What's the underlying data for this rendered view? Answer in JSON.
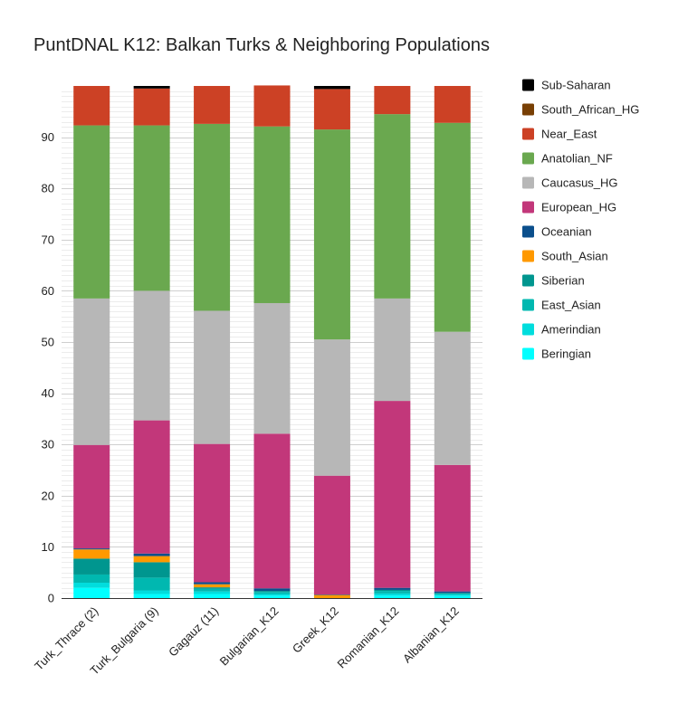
{
  "chart_data": {
    "type": "bar",
    "stacked": true,
    "title": "PuntDNAL K12: Balkan Turks & Neighboring Populations",
    "xlabel": "",
    "ylabel": "",
    "ylim": [
      0,
      100
    ],
    "yticks": [
      0,
      10,
      20,
      30,
      40,
      50,
      60,
      70,
      80,
      90
    ],
    "minor_grid": true,
    "legend_position": "right",
    "categories": [
      "Turk_Thrace (2)",
      "Turk_Bulgaria (9)",
      "Gagauz (11)",
      "Bulgarian_K12",
      "Greek_K12",
      "Romanian_K12",
      "Albanian_K12"
    ],
    "series": [
      {
        "name": "Beringian",
        "color": "#00FFFF",
        "values": [
          2.0,
          0.8,
          0.8,
          0.5,
          0.0,
          0.5,
          0.4
        ]
      },
      {
        "name": "Amerindian",
        "color": "#00DDDD",
        "values": [
          1.0,
          0.7,
          0.5,
          0.3,
          0.0,
          0.4,
          0.3
        ]
      },
      {
        "name": "East_Asian",
        "color": "#00B8B0",
        "values": [
          1.6,
          2.5,
          0.5,
          0.4,
          0.0,
          0.5,
          0.2
        ]
      },
      {
        "name": "Siberian",
        "color": "#00968F",
        "values": [
          3.1,
          3.0,
          0.3,
          0.2,
          0.0,
          0.2,
          0.1
        ]
      },
      {
        "name": "South_Asian",
        "color": "#FF9900",
        "values": [
          1.8,
          1.2,
          0.6,
          0.0,
          0.6,
          0.0,
          0.0
        ]
      },
      {
        "name": "Oceanian",
        "color": "#0B4F8C",
        "values": [
          0.2,
          0.5,
          0.4,
          0.5,
          0.1,
          0.4,
          0.3
        ]
      },
      {
        "name": "European_HG",
        "color": "#C2377A",
        "values": [
          20.2,
          26.0,
          27.0,
          30.2,
          23.2,
          36.5,
          24.7
        ]
      },
      {
        "name": "Caucasus_HG",
        "color": "#B7B7B7",
        "values": [
          28.6,
          25.3,
          26.0,
          25.5,
          26.6,
          20.0,
          26.0
        ]
      },
      {
        "name": "Anatolian_NF",
        "color": "#6AA84F",
        "values": [
          33.8,
          32.3,
          36.5,
          34.5,
          41.0,
          36.0,
          40.8
        ]
      },
      {
        "name": "Near_East",
        "color": "#CC4125",
        "values": [
          7.7,
          7.2,
          7.4,
          8.0,
          7.9,
          5.5,
          7.2
        ]
      },
      {
        "name": "South_African_HG",
        "color": "#783F04",
        "values": [
          0.0,
          0.0,
          0.0,
          0.0,
          0.0,
          0.0,
          0.0
        ]
      },
      {
        "name": "Sub-Saharan",
        "color": "#000000",
        "values": [
          0.0,
          0.5,
          0.0,
          0.0,
          0.6,
          0.0,
          0.0
        ]
      }
    ],
    "legend_order": [
      "Sub-Saharan",
      "South_African_HG",
      "Near_East",
      "Anatolian_NF",
      "Caucasus_HG",
      "European_HG",
      "Oceanian",
      "South_Asian",
      "Siberian",
      "East_Asian",
      "Amerindian",
      "Beringian"
    ]
  }
}
